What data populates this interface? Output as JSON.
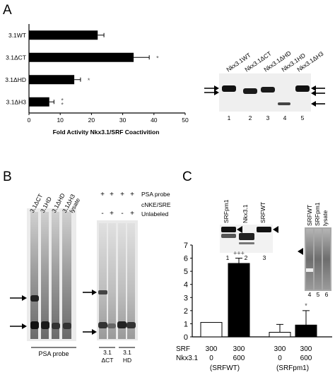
{
  "panels": {
    "A": {
      "letter": "A",
      "chart_data": {
        "type": "bar",
        "orientation": "horizontal",
        "categories": [
          "3.1WT",
          "3.1ΔCT",
          "3.1ΔHD",
          "3.1ΔH3"
        ],
        "values": [
          22,
          33.5,
          14.5,
          6.5
        ],
        "errors": [
          2,
          5,
          2,
          1.5
        ],
        "significance": [
          "",
          "*",
          "*",
          "**"
        ],
        "xlabel": "Fold Activity Nkx3.1/SRF Coactivition",
        "xlim": [
          0,
          50
        ],
        "xticks": [
          0,
          10,
          20,
          30,
          40,
          50
        ]
      },
      "blot": {
        "lane_labels": [
          "Nkx3.1WT",
          "Nkx3.1ΔCT",
          "Nkx3.1ΔHD",
          "Nkx3.1HD",
          "Nkx3.1ΔH3"
        ],
        "lane_numbers": [
          "1",
          "2",
          "3",
          "4",
          "5"
        ]
      }
    },
    "B": {
      "letter": "B",
      "left_gel": {
        "lane_labels": [
          "3.1ΔCT",
          "3.1HD",
          "3.1ΔHD",
          "3.1ΔH3",
          "lysate"
        ],
        "caption": "PSA probe"
      },
      "right_gel": {
        "row1_marks": [
          "+",
          "+",
          "+",
          "+"
        ],
        "row1_label": "PSA probe",
        "row2_marks": [
          "-",
          "+",
          "-",
          "+"
        ],
        "row2_label_line1": "cNKE/SRE",
        "row2_label_line2": "Unlabeled",
        "groups": [
          {
            "line1": "3.1",
            "line2": "ΔCT"
          },
          {
            "line1": "3.1",
            "line2": "HD"
          }
        ]
      }
    },
    "C": {
      "letter": "C",
      "chart_data": {
        "type": "bar",
        "categories": [
          "SRFWT",
          "SRFWT",
          "SRFpm1",
          "SRFpm1"
        ],
        "values": [
          1.1,
          5.6,
          0.35,
          0.9
        ],
        "errors": [
          0,
          0.4,
          0.6,
          1.1
        ],
        "fills": [
          "#ffffff",
          "#000000",
          "#ffffff",
          "#000000"
        ],
        "significance": [
          "",
          "+++",
          "",
          "*"
        ],
        "ylim": [
          0,
          7
        ],
        "yticks": [
          0,
          1,
          2,
          3,
          4,
          5,
          6,
          7
        ]
      },
      "conditions": {
        "srf_label": "SRF",
        "srf_values": [
          "300",
          "300",
          "300",
          "300"
        ],
        "nkx_label": "Nkx3.1",
        "nkx_values": [
          "0",
          "600",
          "0",
          "600"
        ],
        "groups": [
          "(SRFWT)",
          "(SRFpm1)"
        ]
      },
      "blot1": {
        "lane_labels": [
          "SRFpm1",
          "Nkx3.1",
          "SRFWT"
        ],
        "lane_numbers": [
          "1",
          "2",
          "3"
        ]
      },
      "blot2": {
        "lane_labels": [
          "SRFWT",
          "SRFpm1",
          "lysate"
        ],
        "lane_numbers": [
          "4",
          "5",
          "6"
        ]
      }
    }
  }
}
